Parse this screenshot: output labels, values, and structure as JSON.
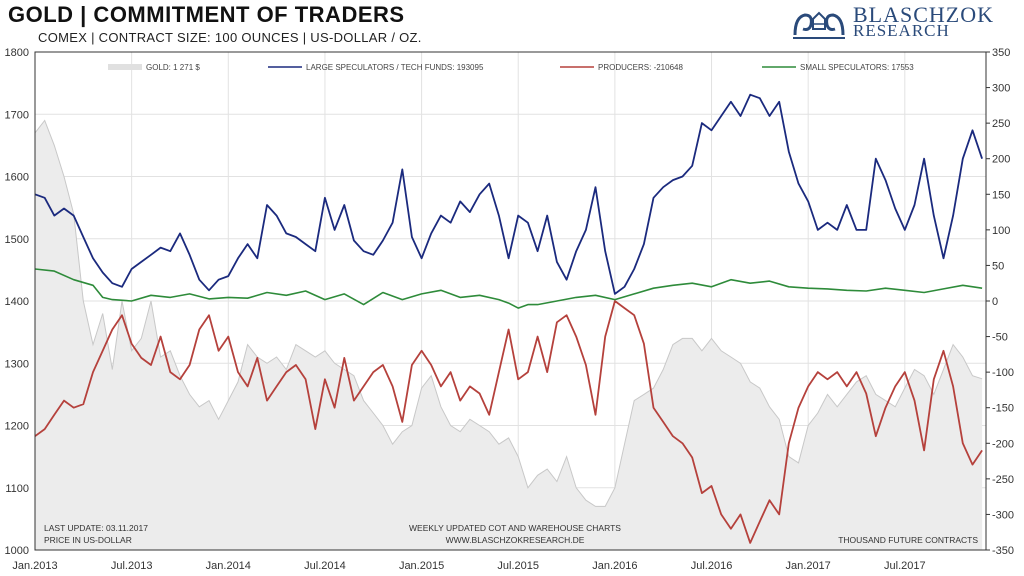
{
  "header": {
    "title": "GOLD | COMMITMENT OF TRADERS",
    "subtitle": "COMEX | CONTRACT SIZE: 100 OUNCES | US-DOLLAR / OZ."
  },
  "logo": {
    "line1": "BLASCHZOK",
    "line2": "RESEARCH"
  },
  "footer": {
    "last_update": "LAST UPDATE: 03.11.2017",
    "price_note": "PRICE IN US-DOLLAR",
    "center1": "WEEKLY UPDATED COT AND WAREHOUSE CHARTS",
    "center2": "WWW.BLASCHZOKRESEARCH.DE",
    "right": "THOUSAND FUTURE CONTRACTS"
  },
  "colors": {
    "gold_fill": "#ececec",
    "gold_line": "#c8c8c8",
    "large_speculators": "#1b2a7e",
    "producers": "#b5413c",
    "small_speculators": "#2e8b3a"
  },
  "chart_data": {
    "type": "line",
    "legend": [
      {
        "key": "gold",
        "label": "GOLD: 1 271 $"
      },
      {
        "key": "large",
        "label": "LARGE SPECULATORS / TECH FUNDS: 193095"
      },
      {
        "key": "producers",
        "label": "PRODUCERS: -210648"
      },
      {
        "key": "small",
        "label": "SMALL SPECULATORS: 17553"
      }
    ],
    "x_tick_labels": [
      "Jan.2013",
      "Jul.2013",
      "Jan.2014",
      "Jul.2014",
      "Jan.2015",
      "Jul.2015",
      "Jan.2016",
      "Jul.2016",
      "Jan.2017",
      "Jul.2017"
    ],
    "x_range": [
      2013.0,
      2017.92
    ],
    "y_left": {
      "range": [
        1000,
        1800
      ],
      "ticks": [
        1000,
        1100,
        1200,
        1300,
        1400,
        1500,
        1600,
        1700,
        1800
      ]
    },
    "y_right": {
      "range": [
        -350,
        350
      ],
      "ticks": [
        -350,
        -300,
        -250,
        -200,
        -150,
        -100,
        -50,
        0,
        50,
        100,
        150,
        200,
        250,
        300,
        350
      ]
    },
    "series": [
      {
        "key": "gold",
        "axis": "left",
        "x": [
          2013.0,
          2013.05,
          2013.1,
          2013.15,
          2013.2,
          2013.25,
          2013.3,
          2013.35,
          2013.4,
          2013.45,
          2013.5,
          2013.55,
          2013.6,
          2013.65,
          2013.7,
          2013.75,
          2013.8,
          2013.85,
          2013.9,
          2013.95,
          2014.0,
          2014.05,
          2014.1,
          2014.15,
          2014.2,
          2014.25,
          2014.3,
          2014.35,
          2014.4,
          2014.45,
          2014.5,
          2014.55,
          2014.6,
          2014.65,
          2014.7,
          2014.75,
          2014.8,
          2014.85,
          2014.9,
          2014.95,
          2015.0,
          2015.05,
          2015.1,
          2015.15,
          2015.2,
          2015.25,
          2015.3,
          2015.35,
          2015.4,
          2015.45,
          2015.5,
          2015.55,
          2015.6,
          2015.65,
          2015.7,
          2015.75,
          2015.8,
          2015.85,
          2015.9,
          2015.95,
          2016.0,
          2016.05,
          2016.1,
          2016.15,
          2016.2,
          2016.25,
          2016.3,
          2016.35,
          2016.4,
          2016.45,
          2016.5,
          2016.55,
          2016.6,
          2016.65,
          2016.7,
          2016.75,
          2016.8,
          2016.85,
          2016.9,
          2016.95,
          2017.0,
          2017.05,
          2017.1,
          2017.15,
          2017.2,
          2017.25,
          2017.3,
          2017.35,
          2017.4,
          2017.45,
          2017.5,
          2017.55,
          2017.6,
          2017.65,
          2017.7,
          2017.75,
          2017.8,
          2017.85,
          2017.9
        ],
        "values": [
          1670,
          1690,
          1650,
          1600,
          1540,
          1400,
          1330,
          1380,
          1290,
          1400,
          1320,
          1340,
          1400,
          1310,
          1320,
          1280,
          1250,
          1230,
          1240,
          1210,
          1240,
          1270,
          1330,
          1310,
          1300,
          1310,
          1290,
          1330,
          1320,
          1310,
          1320,
          1300,
          1290,
          1280,
          1240,
          1220,
          1200,
          1170,
          1190,
          1200,
          1260,
          1280,
          1230,
          1200,
          1190,
          1210,
          1200,
          1190,
          1170,
          1180,
          1150,
          1100,
          1120,
          1130,
          1110,
          1150,
          1100,
          1080,
          1070,
          1070,
          1100,
          1170,
          1240,
          1250,
          1260,
          1290,
          1330,
          1340,
          1340,
          1320,
          1340,
          1320,
          1310,
          1300,
          1270,
          1260,
          1230,
          1210,
          1150,
          1140,
          1200,
          1220,
          1250,
          1230,
          1250,
          1270,
          1280,
          1250,
          1240,
          1230,
          1260,
          1290,
          1280,
          1250,
          1290,
          1330,
          1310,
          1280,
          1275
        ]
      },
      {
        "key": "large",
        "axis": "right",
        "x": [
          2013.0,
          2013.05,
          2013.1,
          2013.15,
          2013.2,
          2013.25,
          2013.3,
          2013.35,
          2013.4,
          2013.45,
          2013.5,
          2013.55,
          2013.6,
          2013.65,
          2013.7,
          2013.75,
          2013.8,
          2013.85,
          2013.9,
          2013.95,
          2014.0,
          2014.05,
          2014.1,
          2014.15,
          2014.2,
          2014.25,
          2014.3,
          2014.35,
          2014.4,
          2014.45,
          2014.5,
          2014.55,
          2014.6,
          2014.65,
          2014.7,
          2014.75,
          2014.8,
          2014.85,
          2014.9,
          2014.95,
          2015.0,
          2015.05,
          2015.1,
          2015.15,
          2015.2,
          2015.25,
          2015.3,
          2015.35,
          2015.4,
          2015.45,
          2015.5,
          2015.55,
          2015.6,
          2015.65,
          2015.7,
          2015.75,
          2015.8,
          2015.85,
          2015.9,
          2015.95,
          2016.0,
          2016.05,
          2016.1,
          2016.15,
          2016.2,
          2016.25,
          2016.3,
          2016.35,
          2016.4,
          2016.45,
          2016.5,
          2016.55,
          2016.6,
          2016.65,
          2016.7,
          2016.75,
          2016.8,
          2016.85,
          2016.9,
          2016.95,
          2017.0,
          2017.05,
          2017.1,
          2017.15,
          2017.2,
          2017.25,
          2017.3,
          2017.35,
          2017.4,
          2017.45,
          2017.5,
          2017.55,
          2017.6,
          2017.65,
          2017.7,
          2017.75,
          2017.8,
          2017.85,
          2017.9
        ],
        "values": [
          150,
          145,
          120,
          130,
          120,
          90,
          60,
          40,
          25,
          20,
          45,
          55,
          65,
          75,
          70,
          95,
          65,
          30,
          15,
          30,
          35,
          60,
          80,
          60,
          135,
          120,
          95,
          90,
          80,
          70,
          145,
          100,
          135,
          85,
          70,
          65,
          85,
          110,
          185,
          90,
          60,
          95,
          120,
          110,
          140,
          125,
          150,
          165,
          120,
          60,
          120,
          110,
          70,
          120,
          55,
          30,
          70,
          100,
          160,
          70,
          10,
          20,
          45,
          80,
          145,
          160,
          170,
          175,
          190,
          250,
          240,
          260,
          280,
          260,
          290,
          285,
          260,
          280,
          210,
          165,
          140,
          100,
          110,
          100,
          135,
          100,
          100,
          200,
          170,
          130,
          100,
          135,
          200,
          120,
          60,
          120,
          200,
          240,
          200
        ]
      },
      {
        "key": "producers",
        "axis": "right",
        "x": [
          2013.0,
          2013.05,
          2013.1,
          2013.15,
          2013.2,
          2013.25,
          2013.3,
          2013.35,
          2013.4,
          2013.45,
          2013.5,
          2013.55,
          2013.6,
          2013.65,
          2013.7,
          2013.75,
          2013.8,
          2013.85,
          2013.9,
          2013.95,
          2014.0,
          2014.05,
          2014.1,
          2014.15,
          2014.2,
          2014.25,
          2014.3,
          2014.35,
          2014.4,
          2014.45,
          2014.5,
          2014.55,
          2014.6,
          2014.65,
          2014.7,
          2014.75,
          2014.8,
          2014.85,
          2014.9,
          2014.95,
          2015.0,
          2015.05,
          2015.1,
          2015.15,
          2015.2,
          2015.25,
          2015.3,
          2015.35,
          2015.4,
          2015.45,
          2015.5,
          2015.55,
          2015.6,
          2015.65,
          2015.7,
          2015.75,
          2015.8,
          2015.85,
          2015.9,
          2015.95,
          2016.0,
          2016.05,
          2016.1,
          2016.15,
          2016.2,
          2016.25,
          2016.3,
          2016.35,
          2016.4,
          2016.45,
          2016.5,
          2016.55,
          2016.6,
          2016.65,
          2016.7,
          2016.75,
          2016.8,
          2016.85,
          2016.9,
          2016.95,
          2017.0,
          2017.05,
          2017.1,
          2017.15,
          2017.2,
          2017.25,
          2017.3,
          2017.35,
          2017.4,
          2017.45,
          2017.5,
          2017.55,
          2017.6,
          2017.65,
          2017.7,
          2017.75,
          2017.8,
          2017.85,
          2017.9
        ],
        "values": [
          -190,
          -180,
          -160,
          -140,
          -150,
          -145,
          -100,
          -70,
          -40,
          -20,
          -60,
          -80,
          -90,
          -50,
          -100,
          -110,
          -90,
          -40,
          -20,
          -70,
          -50,
          -100,
          -120,
          -80,
          -140,
          -120,
          -100,
          -90,
          -110,
          -180,
          -110,
          -150,
          -80,
          -140,
          -120,
          -100,
          -90,
          -120,
          -170,
          -90,
          -70,
          -90,
          -120,
          -100,
          -140,
          -120,
          -130,
          -160,
          -100,
          -40,
          -110,
          -100,
          -50,
          -100,
          -30,
          -20,
          -50,
          -90,
          -160,
          -50,
          0,
          -10,
          -20,
          -60,
          -150,
          -170,
          -190,
          -200,
          -220,
          -270,
          -260,
          -300,
          -320,
          -300,
          -340,
          -310,
          -280,
          -300,
          -200,
          -150,
          -120,
          -100,
          -110,
          -100,
          -120,
          -100,
          -130,
          -190,
          -150,
          -120,
          -100,
          -140,
          -210,
          -110,
          -70,
          -120,
          -200,
          -230,
          -210
        ]
      },
      {
        "key": "small",
        "axis": "right",
        "x": [
          2013.0,
          2013.1,
          2013.2,
          2013.3,
          2013.35,
          2013.4,
          2013.5,
          2013.6,
          2013.7,
          2013.8,
          2013.9,
          2014.0,
          2014.1,
          2014.2,
          2014.3,
          2014.4,
          2014.5,
          2014.6,
          2014.7,
          2014.8,
          2014.9,
          2015.0,
          2015.1,
          2015.2,
          2015.3,
          2015.4,
          2015.45,
          2015.5,
          2015.55,
          2015.6,
          2015.7,
          2015.8,
          2015.9,
          2016.0,
          2016.1,
          2016.2,
          2016.3,
          2016.4,
          2016.5,
          2016.6,
          2016.7,
          2016.8,
          2016.9,
          2017.0,
          2017.1,
          2017.2,
          2017.3,
          2017.4,
          2017.5,
          2017.6,
          2017.7,
          2017.8,
          2017.9
        ],
        "values": [
          45,
          42,
          30,
          22,
          5,
          2,
          0,
          8,
          5,
          10,
          3,
          5,
          4,
          12,
          8,
          14,
          2,
          10,
          -5,
          12,
          2,
          10,
          15,
          5,
          8,
          2,
          -3,
          -10,
          -5,
          -5,
          0,
          5,
          8,
          2,
          10,
          18,
          22,
          25,
          20,
          30,
          25,
          28,
          20,
          18,
          17,
          15,
          14,
          18,
          15,
          12,
          17,
          22,
          18
        ]
      }
    ]
  }
}
